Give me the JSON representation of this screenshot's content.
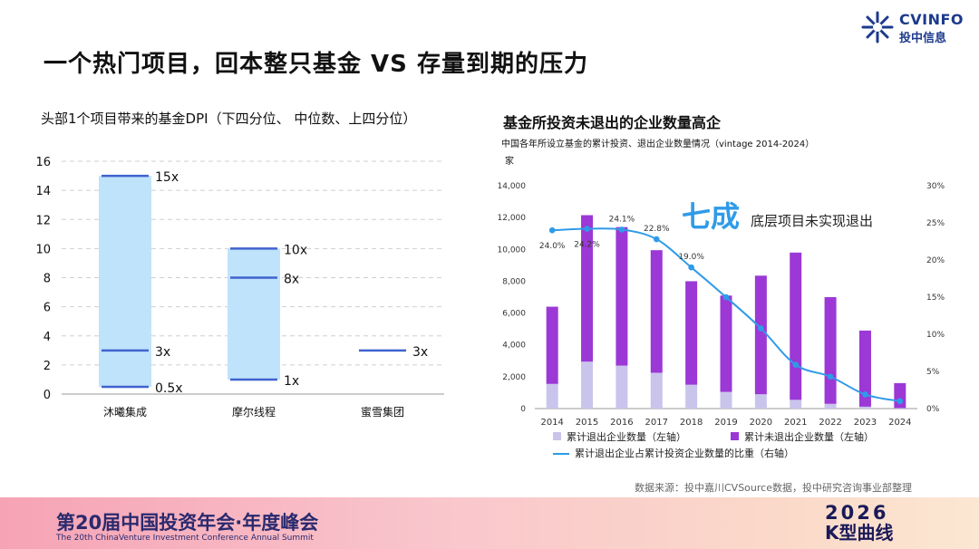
{
  "page_title": "一个热门项目，回本整只基金 VS 存量到期的压力",
  "logo": {
    "line1": "CVINFO",
    "line2": "投中信息",
    "icon": "starburst-logo-icon",
    "color": "#1c3a8c"
  },
  "left_subtitle": "头部1个项目带来的基金DPI（下四分位、 中位数、上四分位）",
  "right_subtitle": "基金所投资未退出的企业数量高企",
  "right_subtitle2": "中国各年所设立基金的累计投资、退出企业数量情况（vintage 2014-2024）",
  "annotation_big": "七成",
  "annotation_text": "底层项目未实现退出",
  "source": "数据来源：投中嘉川CVSource数据，投中研究咨询事业部整理",
  "footer": {
    "title": "第20届中国投资年会·年度峰会",
    "subtitle": "The 20th ChinaVenture Investment Conference Annual Summit",
    "brand_top": "2026",
    "brand_bottom": "K型曲线"
  },
  "chart_data": [
    {
      "type": "box-range",
      "title": "头部1个项目带来的基金DPI（下四分位、 中位数、上四分位）",
      "ylim": [
        0,
        16
      ],
      "yticks": [
        0,
        2,
        4,
        6,
        8,
        10,
        12,
        14,
        16
      ],
      "categories": [
        "沐曦集成",
        "摩尔线程",
        "蜜雪集团"
      ],
      "ranges": [
        {
          "low": 0.5,
          "high": 15,
          "marks": [
            {
              "value": 15,
              "label": "15x"
            },
            {
              "value": 3,
              "label": "3x"
            },
            {
              "value": 0.5,
              "label": "0.5x"
            }
          ]
        },
        {
          "low": 1,
          "high": 10,
          "marks": [
            {
              "value": 10,
              "label": "10x"
            },
            {
              "value": 8,
              "label": "8x"
            },
            {
              "value": 1,
              "label": "1x"
            }
          ]
        },
        {
          "low": null,
          "high": null,
          "marks": [
            {
              "value": 3,
              "label": "3x"
            }
          ]
        }
      ],
      "colors": {
        "box": "#bfe3fb",
        "line": "#4063cf"
      }
    },
    {
      "type": "bar+line",
      "title": "基金所投资未退出的企业数量高企",
      "ylabel": "家",
      "categories": [
        "2014",
        "2015",
        "2016",
        "2017",
        "2018",
        "2019",
        "2020",
        "2021",
        "2022",
        "2023",
        "2024"
      ],
      "left_ylim": [
        0,
        14000
      ],
      "left_yticks": [
        "0",
        "2,000",
        "4,000",
        "6,000",
        "8,000",
        "10,000",
        "12,000",
        "14,000"
      ],
      "right_ylim": [
        0,
        30
      ],
      "right_yticks": [
        "0%",
        "5%",
        "10%",
        "15%",
        "20%",
        "25%",
        "30%"
      ],
      "series": [
        {
          "name": "累计退出企业数量（左轴）",
          "type": "stacked-bar",
          "color": "#c9c4ec",
          "values": [
            1550,
            2950,
            2700,
            2250,
            1500,
            1050,
            900,
            550,
            300,
            120,
            30
          ]
        },
        {
          "name": "累计未退出企业数量（左轴）",
          "type": "stacked-bar",
          "color": "#9b38d6",
          "values": [
            4850,
            9200,
            8700,
            7700,
            6500,
            6050,
            7450,
            9250,
            6700,
            4780,
            1570
          ]
        },
        {
          "name": "累计退出企业占累计投资企业数量的比重（右轴）",
          "type": "line",
          "color": "#2f9be8",
          "values": [
            24.0,
            24.2,
            24.1,
            22.8,
            19.0,
            15.0,
            10.8,
            5.9,
            4.3,
            1.9,
            1.0
          ],
          "labels": [
            "24.0%",
            "24.2%",
            "24.1%",
            "22.8%",
            "19.0%",
            "",
            "",
            "",
            "",
            "",
            ""
          ]
        }
      ]
    }
  ]
}
